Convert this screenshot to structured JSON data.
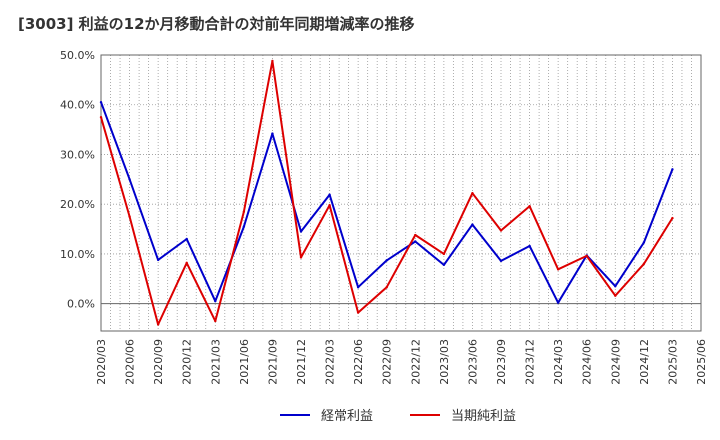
{
  "chart_data": {
    "type": "line",
    "title": "[3003]  利益の12か月移動合計の対前年同期増減率の推移",
    "xlabel": "",
    "ylabel": "",
    "ylim": [
      -5.5,
      50
    ],
    "yticks": [
      0,
      10,
      20,
      30,
      40,
      50
    ],
    "ytick_labels": [
      "0.0%",
      "10.0%",
      "20.0%",
      "30.0%",
      "40.0%",
      "50.0%"
    ],
    "categories": [
      "2020/03",
      "2020/06",
      "2020/09",
      "2020/12",
      "2021/03",
      "2021/06",
      "2021/09",
      "2021/12",
      "2022/03",
      "2022/06",
      "2022/09",
      "2022/12",
      "2023/03",
      "2023/06",
      "2023/09",
      "2023/12",
      "2024/03",
      "2024/06",
      "2024/09",
      "2024/12",
      "2025/03",
      "2025/06"
    ],
    "series": [
      {
        "name": "経常利益",
        "color": "#0000cc",
        "values": [
          40.5,
          25.0,
          8.8,
          13.0,
          0.5,
          15.5,
          34.2,
          14.5,
          21.9,
          3.3,
          8.7,
          12.5,
          7.8,
          15.9,
          8.6,
          11.6,
          0.2,
          9.7,
          3.5,
          12.3,
          27.0,
          null
        ]
      },
      {
        "name": "当期純利益",
        "color": "#dd0000",
        "values": [
          37.5,
          17.5,
          -4.2,
          8.2,
          -3.5,
          18.5,
          48.8,
          9.3,
          19.8,
          -1.8,
          3.3,
          13.8,
          10.0,
          22.2,
          14.7,
          19.6,
          6.9,
          9.6,
          1.6,
          8.0,
          17.2,
          null
        ]
      }
    ],
    "legend_position": "bottom"
  }
}
